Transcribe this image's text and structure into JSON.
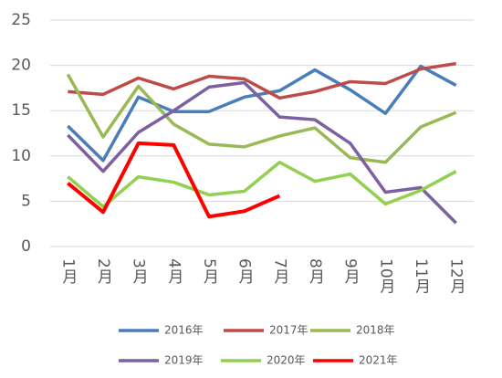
{
  "chart_data": {
    "type": "line",
    "categories": [
      "1月",
      "2月",
      "3月",
      "4月",
      "5月",
      "6月",
      "7月",
      "8月",
      "9月",
      "10月",
      "11月",
      "12月"
    ],
    "series": [
      {
        "name": "2016年",
        "color": "#4a7ebb",
        "values": [
          13.3,
          9.5,
          16.5,
          14.9,
          14.9,
          16.5,
          17.2,
          19.5,
          17.3,
          14.7,
          19.9,
          17.8
        ]
      },
      {
        "name": "2017年",
        "color": "#be4b48",
        "values": [
          17.1,
          16.8,
          18.6,
          17.4,
          18.8,
          18.5,
          16.4,
          17.1,
          18.2,
          18.0,
          19.6,
          20.2
        ]
      },
      {
        "name": "2018年",
        "color": "#98b954",
        "values": [
          19.0,
          12.1,
          17.7,
          13.5,
          11.3,
          11.0,
          12.2,
          13.1,
          9.8,
          9.3,
          13.2,
          14.8
        ]
      },
      {
        "name": "2019年",
        "color": "#7d60a0",
        "values": [
          12.3,
          8.3,
          12.6,
          15.0,
          17.6,
          18.1,
          14.3,
          14.0,
          11.4,
          6.0,
          6.5,
          2.6
        ]
      },
      {
        "name": "2020年",
        "color": "#92d050",
        "values": [
          7.7,
          4.4,
          7.7,
          7.1,
          5.7,
          6.1,
          9.3,
          7.2,
          8.0,
          4.7,
          6.2,
          8.3
        ]
      },
      {
        "name": "2021年",
        "color": "#ff0000",
        "values": [
          7.0,
          3.8,
          11.4,
          11.2,
          3.3,
          3.9,
          5.6,
          null,
          null,
          null,
          null,
          null
        ]
      }
    ],
    "ylim": [
      0,
      25
    ],
    "yticks": [
      0,
      5,
      10,
      15,
      20,
      25
    ],
    "grid": true,
    "legend": "bottom"
  }
}
